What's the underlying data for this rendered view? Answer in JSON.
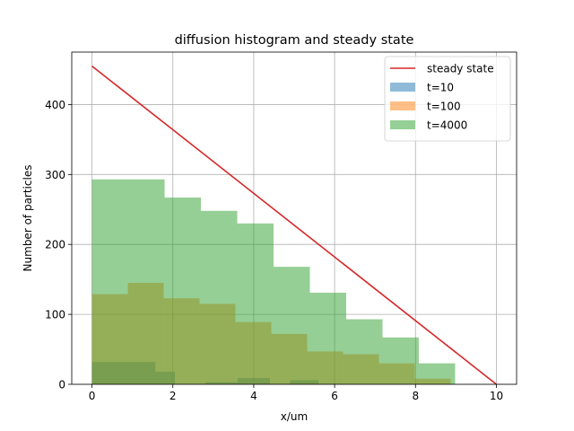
{
  "chart_data": {
    "type": "bar",
    "title": "diffusion histogram and steady state",
    "xlabel": "x/um",
    "ylabel": "Number of particles",
    "xlim": [
      -0.5,
      10.5
    ],
    "ylim": [
      0,
      475
    ],
    "xticks": [
      0,
      2,
      4,
      6,
      8,
      10
    ],
    "yticks": [
      0,
      100,
      200,
      300,
      400
    ],
    "grid": true,
    "legend_position": "top-right",
    "steady_state": {
      "name": "steady state",
      "color": "#d62728",
      "x": [
        0,
        10
      ],
      "y": [
        455,
        0
      ]
    },
    "series": [
      {
        "name": "t=10",
        "color": "#1f77b4",
        "bins": [
          [
            0.0,
            0.784,
            32
          ],
          [
            0.784,
            1.568,
            32
          ],
          [
            1.568,
            2.052,
            18
          ],
          [
            2.8,
            3.6,
            3
          ],
          [
            3.6,
            4.4,
            9
          ],
          [
            4.9,
            5.6,
            6
          ]
        ]
      },
      {
        "name": "t=100",
        "color": "#ff7f0e",
        "bins": [
          [
            0.0,
            0.887,
            129
          ],
          [
            0.887,
            1.774,
            145
          ],
          [
            1.774,
            2.661,
            123
          ],
          [
            2.661,
            3.548,
            115
          ],
          [
            3.548,
            4.435,
            89
          ],
          [
            4.435,
            5.322,
            72
          ],
          [
            5.322,
            6.209,
            47
          ],
          [
            6.209,
            7.096,
            43
          ],
          [
            7.096,
            7.983,
            30
          ],
          [
            7.983,
            8.87,
            8
          ]
        ]
      },
      {
        "name": "t=4000",
        "color": "#2ca02c",
        "bins": [
          [
            0.0,
            0.898,
            293
          ],
          [
            0.898,
            1.796,
            293
          ],
          [
            1.796,
            2.694,
            267
          ],
          [
            2.694,
            3.592,
            248
          ],
          [
            3.592,
            4.49,
            230
          ],
          [
            4.49,
            5.388,
            168
          ],
          [
            5.388,
            6.286,
            131
          ],
          [
            6.286,
            7.184,
            93
          ],
          [
            7.184,
            8.082,
            67
          ],
          [
            8.082,
            8.98,
            30
          ]
        ]
      }
    ]
  }
}
